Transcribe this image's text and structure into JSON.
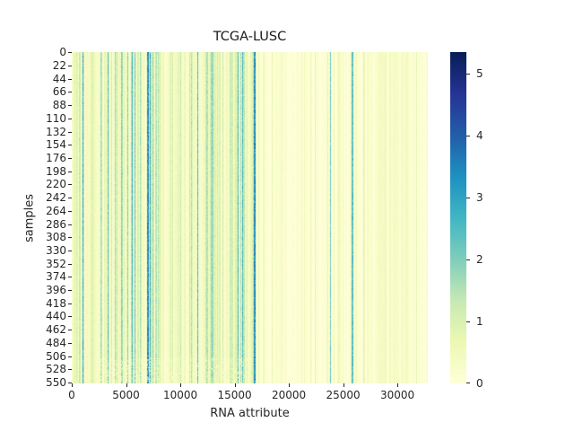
{
  "chart_data": {
    "type": "heatmap",
    "title": "TCGA-LUSC",
    "xlabel": "RNA attribute",
    "ylabel": "samples",
    "x_ticks": [
      0,
      5000,
      10000,
      15000,
      20000,
      25000,
      30000
    ],
    "x_range": [
      0,
      32800
    ],
    "y_ticks": [
      0,
      22,
      44,
      66,
      88,
      110,
      132,
      154,
      176,
      198,
      220,
      242,
      264,
      286,
      308,
      330,
      352,
      374,
      396,
      418,
      440,
      462,
      484,
      506,
      528,
      550
    ],
    "y_range": [
      0,
      552
    ],
    "colorbar": {
      "colormap": "YlGnBu",
      "ticks": [
        0,
        1,
        2,
        3,
        4,
        5
      ],
      "range": [
        0,
        5.35
      ]
    },
    "description": "Dense gene-expression heatmap; first ~17000 attributes show higher expression (greenish stripes), remaining attributes mostly near 0 (pale yellow). Prominent high-value stripes near attributes ~1000, ~7000, ~16800, ~23800, ~25800.",
    "notable_columns": [
      {
        "x": 1000,
        "value": 3.0
      },
      {
        "x": 7000,
        "value": 3.2
      },
      {
        "x": 7200,
        "value": 2.8
      },
      {
        "x": 16800,
        "value": 3.3
      },
      {
        "x": 23800,
        "value": 2.2
      },
      {
        "x": 25800,
        "value": 2.4
      }
    ]
  }
}
